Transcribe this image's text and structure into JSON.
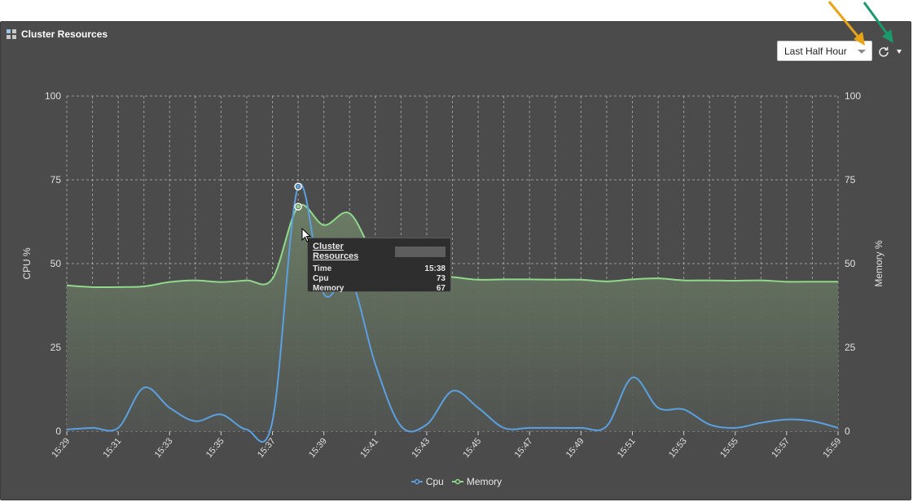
{
  "panel": {
    "title": "Cluster Resources"
  },
  "time_range": {
    "selected": "Last Half Hour"
  },
  "icons": {
    "panel": "dashboard-grid-icon",
    "refresh": "refresh-icon",
    "menu": "dropdown-caret-icon"
  },
  "colors": {
    "cpu": "#5ba0e0",
    "memory": "#90d98a",
    "annotation_orange": "#e8a317",
    "annotation_green": "#1a9a6a"
  },
  "tooltip": {
    "title": "Cluster Resources",
    "rows": [
      {
        "label": "Time",
        "value": "15:38"
      },
      {
        "label": "Cpu",
        "value": "73"
      },
      {
        "label": "Memory",
        "value": "67"
      }
    ]
  },
  "chart_data": {
    "type": "line",
    "title": "Cluster Resources",
    "ylabel": "CPU %",
    "y2label": "Memory %",
    "ylim": [
      0,
      100
    ],
    "y2lim": [
      0,
      100
    ],
    "yticks": [
      "0",
      "25",
      "50",
      "75",
      "100"
    ],
    "grid": true,
    "legend_position": "bottom-center",
    "x": [
      "15:29",
      "15:30",
      "15:31",
      "15:32",
      "15:33",
      "15:34",
      "15:35",
      "15:36",
      "15:37",
      "15:38",
      "15:39",
      "15:40",
      "15:41",
      "15:42",
      "15:43",
      "15:44",
      "15:45",
      "15:46",
      "15:47",
      "15:48",
      "15:49",
      "15:50",
      "15:51",
      "15:52",
      "15:53",
      "15:54",
      "15:55",
      "15:56",
      "15:57",
      "15:58",
      "15:59"
    ],
    "xtick_labels": [
      "15:29",
      "15:31",
      "15:33",
      "15:35",
      "15:37",
      "15:39",
      "15:41",
      "15:43",
      "15:45",
      "15:47",
      "15:49",
      "15:51",
      "15:53",
      "15:55",
      "15:57",
      "15:59"
    ],
    "series": [
      {
        "name": "Cpu",
        "axis": "left",
        "values": [
          0.5,
          1,
          1,
          13,
          7,
          3,
          5,
          0.5,
          3,
          73,
          41,
          46,
          20,
          1.5,
          2,
          12,
          7,
          1,
          1,
          1,
          1,
          1.5,
          16,
          7,
          6.5,
          2,
          1,
          2.5,
          3.5,
          3,
          1
        ]
      },
      {
        "name": "Memory",
        "axis": "right",
        "values": [
          43.5,
          43,
          43,
          43.2,
          44.5,
          45,
          44.5,
          45,
          45.5,
          67,
          61.5,
          65,
          52,
          47,
          46.5,
          46,
          45.2,
          45.3,
          45.3,
          45.2,
          45.2,
          44.7,
          45.3,
          45.6,
          45,
          45,
          44.9,
          45,
          44.6,
          44.6,
          44.6
        ]
      }
    ],
    "highlight_index": 9
  }
}
